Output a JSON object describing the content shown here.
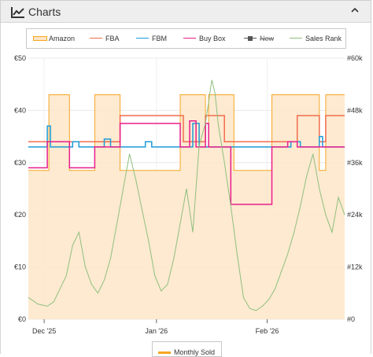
{
  "panel": {
    "title": "Charts",
    "icon": "line-chart-icon",
    "collapse_icon": "chevron-up-icon"
  },
  "legend": [
    {
      "name": "Amazon",
      "color": "#f6a623",
      "fill": "#fde6c8",
      "style": "area"
    },
    {
      "name": "FBA",
      "color": "#f26c4f",
      "style": "line"
    },
    {
      "name": "FBM",
      "color": "#1d9bd8",
      "style": "line"
    },
    {
      "name": "Buy Box",
      "color": "#e91e8c",
      "style": "line"
    },
    {
      "name": "New",
      "color": "#555555",
      "style": "line-square",
      "hidden": true
    },
    {
      "name": "Sales Rank",
      "color": "#8fbf7f",
      "style": "line"
    }
  ],
  "bottom_legend": {
    "label": "Monthly Sold",
    "color": "#f6a623"
  },
  "chart_data": {
    "type": "line",
    "x_tick_labels": [
      "Dec '25",
      "Jan '26",
      "Feb '26"
    ],
    "x_range": [
      0,
      100
    ],
    "x_ticks": [
      5,
      40.5,
      75.5
    ],
    "y_left": {
      "ticks": [
        "€0",
        "€10",
        "€20",
        "€30",
        "€40",
        "€50"
      ],
      "range": [
        0,
        50
      ]
    },
    "y_right": {
      "ticks": [
        "#0",
        "#12k",
        "#24k",
        "#36k",
        "#48k",
        "#60k"
      ],
      "range": [
        0,
        60000
      ]
    },
    "series": [
      {
        "name": "Amazon",
        "axis": "left",
        "type": "area",
        "points": [
          [
            0,
            28.5
          ],
          [
            6.5,
            28.5
          ],
          [
            6.5,
            43
          ],
          [
            13,
            43
          ],
          [
            13,
            28.5
          ],
          [
            21,
            28.5
          ],
          [
            21,
            43
          ],
          [
            29,
            43
          ],
          [
            29,
            28.5
          ],
          [
            48,
            28.5
          ],
          [
            48,
            43
          ],
          [
            56,
            43
          ],
          [
            56,
            33
          ],
          [
            57,
            33
          ],
          [
            57,
            43
          ],
          [
            65,
            43
          ],
          [
            65,
            28.5
          ],
          [
            77,
            28.5
          ],
          [
            77,
            43
          ],
          [
            92,
            43
          ],
          [
            92,
            28.5
          ],
          [
            94,
            28.5
          ],
          [
            94,
            43
          ],
          [
            100,
            43
          ]
        ]
      },
      {
        "name": "FBA",
        "axis": "left",
        "type": "line",
        "points": [
          [
            0,
            34
          ],
          [
            29,
            34
          ],
          [
            29,
            39
          ],
          [
            49,
            39
          ],
          [
            49,
            34
          ],
          [
            56,
            34
          ],
          [
            56,
            39
          ],
          [
            62,
            39
          ],
          [
            62,
            34
          ],
          [
            85,
            34
          ],
          [
            85,
            39
          ],
          [
            92,
            39
          ],
          [
            92,
            34
          ],
          [
            94,
            34
          ],
          [
            94,
            39
          ],
          [
            100,
            39
          ]
        ]
      },
      {
        "name": "FBM",
        "axis": "left",
        "type": "line",
        "points": [
          [
            0,
            33
          ],
          [
            6,
            33
          ],
          [
            6,
            37
          ],
          [
            7,
            37
          ],
          [
            7,
            33
          ],
          [
            14,
            33
          ],
          [
            14,
            34
          ],
          [
            16,
            34
          ],
          [
            16,
            33
          ],
          [
            24,
            33
          ],
          [
            24,
            34.5
          ],
          [
            26,
            34.5
          ],
          [
            26,
            33
          ],
          [
            37,
            33
          ],
          [
            37,
            34
          ],
          [
            39,
            34
          ],
          [
            39,
            33
          ],
          [
            52,
            33
          ],
          [
            52,
            37.5
          ],
          [
            54,
            37.5
          ],
          [
            54,
            33
          ],
          [
            83,
            33
          ],
          [
            83,
            34
          ],
          [
            86,
            34
          ],
          [
            86,
            33
          ],
          [
            92,
            33
          ],
          [
            92,
            35
          ],
          [
            93,
            35
          ],
          [
            93,
            33
          ],
          [
            100,
            33
          ]
        ]
      },
      {
        "name": "Buy Box",
        "axis": "left",
        "type": "line",
        "points": [
          [
            0,
            29
          ],
          [
            6,
            29
          ],
          [
            6,
            34
          ],
          [
            13,
            34
          ],
          [
            13,
            29
          ],
          [
            21,
            29
          ],
          [
            21,
            33
          ],
          [
            29,
            33
          ],
          [
            29,
            37.5
          ],
          [
            48,
            37.5
          ],
          [
            48,
            33
          ],
          [
            51,
            33
          ],
          [
            51,
            38
          ],
          [
            53,
            38
          ],
          [
            53,
            33
          ],
          [
            56,
            33
          ],
          [
            56,
            37.5
          ],
          [
            57,
            37.5
          ],
          [
            57,
            33
          ],
          [
            64,
            33
          ],
          [
            64,
            22
          ],
          [
            77,
            22
          ],
          [
            77,
            33
          ],
          [
            82,
            33
          ],
          [
            82,
            34
          ],
          [
            85,
            34
          ],
          [
            85,
            33
          ],
          [
            100,
            33
          ]
        ]
      },
      {
        "name": "Sales Rank",
        "axis": "right",
        "type": "line",
        "points": [
          [
            0,
            5000
          ],
          [
            3,
            3500
          ],
          [
            6,
            3000
          ],
          [
            8,
            4000
          ],
          [
            10,
            7000
          ],
          [
            12,
            10000
          ],
          [
            14,
            17000
          ],
          [
            16,
            20000
          ],
          [
            18,
            12000
          ],
          [
            20,
            8000
          ],
          [
            22,
            6000
          ],
          [
            24,
            9000
          ],
          [
            26,
            14000
          ],
          [
            28,
            22000
          ],
          [
            30,
            30000
          ],
          [
            32,
            38000
          ],
          [
            34,
            32000
          ],
          [
            36,
            25000
          ],
          [
            38,
            18000
          ],
          [
            40,
            10000
          ],
          [
            42,
            6500
          ],
          [
            44,
            8000
          ],
          [
            46,
            14000
          ],
          [
            48,
            22000
          ],
          [
            50,
            30000
          ],
          [
            52,
            20000
          ],
          [
            54,
            40000
          ],
          [
            56,
            45000
          ],
          [
            58,
            55000
          ],
          [
            59,
            52000
          ],
          [
            60,
            45000
          ],
          [
            62,
            36000
          ],
          [
            64,
            26000
          ],
          [
            66,
            15000
          ],
          [
            68,
            5000
          ],
          [
            70,
            2500
          ],
          [
            72,
            2000
          ],
          [
            74,
            3000
          ],
          [
            76,
            4500
          ],
          [
            78,
            7000
          ],
          [
            80,
            11000
          ],
          [
            82,
            15000
          ],
          [
            84,
            20000
          ],
          [
            86,
            26000
          ],
          [
            88,
            33000
          ],
          [
            90,
            38000
          ],
          [
            92,
            30000
          ],
          [
            94,
            24000
          ],
          [
            96,
            20000
          ],
          [
            98,
            28000
          ],
          [
            100,
            24000
          ]
        ]
      }
    ],
    "grid": true
  }
}
